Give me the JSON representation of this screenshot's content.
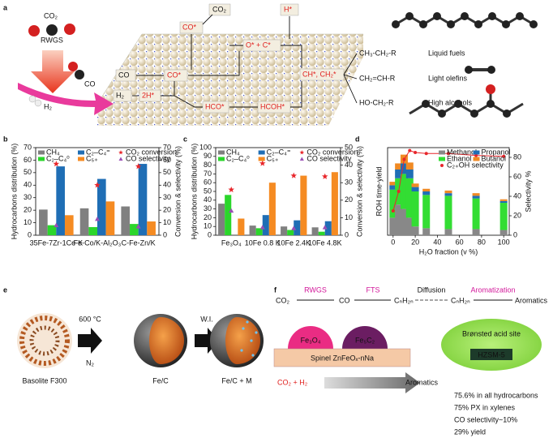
{
  "panel_a": {
    "label": "a",
    "texts": [
      "CO₂",
      "RWGS",
      "CO",
      "H₂",
      "CO₂",
      "CO*",
      "H*",
      "O* + C*",
      "CO",
      "CO*",
      "H₂",
      "2H*",
      "HCO*",
      "HCOH*",
      "CH*, CH₂*",
      "CH₃-CH₂-R",
      "CH₂=CH-R",
      "HO-CH₂-R",
      "Liquid fuels",
      "Light olefins",
      "High alcohols"
    ]
  },
  "chart_data": [
    {
      "type": "bar",
      "panel": "b",
      "categories": [
        "35Fe-7Zr-1Ce-K",
        "Fe-Co/K-Al₂O₃",
        "C-Fe-Zn/K"
      ],
      "ylabel": "Hydrocarbons distribution (%)",
      "y2label": "Conversion & selectivity (%)",
      "ylim": [
        0,
        70
      ],
      "yticks": [
        0,
        10,
        20,
        30,
        40,
        50,
        60,
        70
      ],
      "y2lim": [
        0,
        70
      ],
      "y2ticks": [
        0,
        10,
        20,
        30,
        40,
        50,
        60,
        70
      ],
      "legend": "top",
      "series": [
        {
          "name": "CH₄",
          "color": "#808080",
          "values": [
            20.5,
            21.5,
            23
          ]
        },
        {
          "name": "C₂–C₄⁰",
          "color": "#2bd62b",
          "values": [
            8,
            6.5,
            9
          ]
        },
        {
          "name": "C₂–C₄⁼",
          "color": "#1f6eb5",
          "values": [
            55,
            45,
            57
          ]
        },
        {
          "name": "C₅₊",
          "color": "#f58b22",
          "values": [
            16,
            27,
            11
          ]
        },
        {
          "name": "CO₂ conversion",
          "color": "#e8262b",
          "marker": "star",
          "axis": "y2",
          "values": [
            57,
            40,
            55
          ]
        },
        {
          "name": "CO selectivity",
          "color": "#9a4fb5",
          "marker": "triangle",
          "axis": "y2",
          "values": [
            8,
            13,
            7
          ]
        }
      ]
    },
    {
      "type": "bar",
      "panel": "c",
      "categories": [
        "Fe₃O₄",
        "10Fe 0.8 K",
        "10Fe 2.4K",
        "10Fe 4.8K"
      ],
      "ylabel": "Hydrocarbons distribution (%)",
      "y2label": "Conversion & selectivity (%)",
      "ylim": [
        0,
        100
      ],
      "yticks": [
        0,
        10,
        20,
        30,
        40,
        50,
        60,
        70,
        80,
        90,
        100
      ],
      "y2lim": [
        0,
        50
      ],
      "y2ticks": [
        0,
        10,
        20,
        30,
        40,
        50
      ],
      "legend": "top",
      "series": [
        {
          "name": "CH₄",
          "color": "#808080",
          "values": [
            36,
            11,
            10,
            9
          ]
        },
        {
          "name": "C₂–C₄⁰",
          "color": "#2bd62b",
          "values": [
            46,
            8,
            6,
            4
          ]
        },
        {
          "name": "C₂–C₄⁼",
          "color": "#1f6eb5",
          "values": [
            null,
            23,
            17,
            16
          ]
        },
        {
          "name": "C₅₊",
          "color": "#f58b22",
          "values": [
            19,
            60,
            68,
            72
          ]
        },
        {
          "name": "CO₂ conversion",
          "color": "#e8262b",
          "marker": "star",
          "axis": "y2",
          "values": [
            26,
            41,
            34,
            33.5
          ]
        },
        {
          "name": "CO selectivity",
          "color": "#9a4fb5",
          "marker": "triangle",
          "axis": "y2",
          "values": [
            14,
            4.5,
            4,
            4.5
          ]
        }
      ]
    },
    {
      "type": "stacked_bar",
      "panel": "d",
      "x": [
        0,
        5,
        10,
        15,
        20,
        30,
        50,
        75,
        100
      ],
      "xlim": [
        -5,
        105
      ],
      "xticks": [
        0,
        20,
        40,
        60,
        80,
        100
      ],
      "xlabel": "H₂O fraction (v %)",
      "ylabel": "ROH time-yield",
      "y2label": "Selectivity %",
      "ylim": [
        0,
        1
      ],
      "y2lim": [
        0,
        90
      ],
      "y2ticks": [
        0,
        20,
        40,
        60,
        80
      ],
      "legend": "upper right",
      "series": [
        {
          "name": "Methanol",
          "color": "#888888",
          "values": [
            0.2,
            0.35,
            0.3,
            0.2,
            0.1,
            0.08,
            0.07,
            0.07,
            0.06
          ]
        },
        {
          "name": "Ethanol",
          "color": "#33dd33",
          "values": [
            0.32,
            0.3,
            0.4,
            0.45,
            0.4,
            0.38,
            0.38,
            0.35,
            0.31
          ]
        },
        {
          "name": "Propanol",
          "color": "#1f6eb5",
          "values": [
            0.05,
            0.1,
            0.12,
            0.1,
            0.05,
            0.04,
            0.03,
            0.03,
            0.02
          ]
        },
        {
          "name": "Butanol",
          "color": "#f08a24",
          "values": [
            0.04,
            0.07,
            0.1,
            0.08,
            0.04,
            0.03,
            0.03,
            0.03,
            0.02
          ]
        },
        {
          "name": "C₂₊OH selectivity",
          "color": "#e8262b",
          "marker": "circle",
          "axis": "y2",
          "values": [
            25,
            45,
            78,
            87,
            85,
            84,
            84,
            82,
            81
          ]
        }
      ]
    }
  ],
  "panel_e": {
    "label": "e",
    "texts": [
      "Basolite F300",
      "600 °C",
      "N₂",
      "Fe/C",
      "W.I.",
      "Fe/C + M"
    ]
  },
  "panel_f": {
    "label": "f",
    "texts": [
      "CO₂",
      "RWGS",
      "CO",
      "FTS",
      "CₙH₂ₙ",
      "Diffusion",
      "CₙH₂ₙ",
      "Aromatization",
      "Aromatics",
      "Fe₃O₄",
      "Fe₅C₂",
      "Spinel ZnFeOₓ-nNa",
      "Brønsted acid site",
      "HZSM-5",
      "CO₂ + H₂",
      "Aromatics",
      "75.6% in all hydrocarbons",
      "75% PX in xylenes",
      "CO selectivity~10%",
      "29% yield"
    ]
  }
}
